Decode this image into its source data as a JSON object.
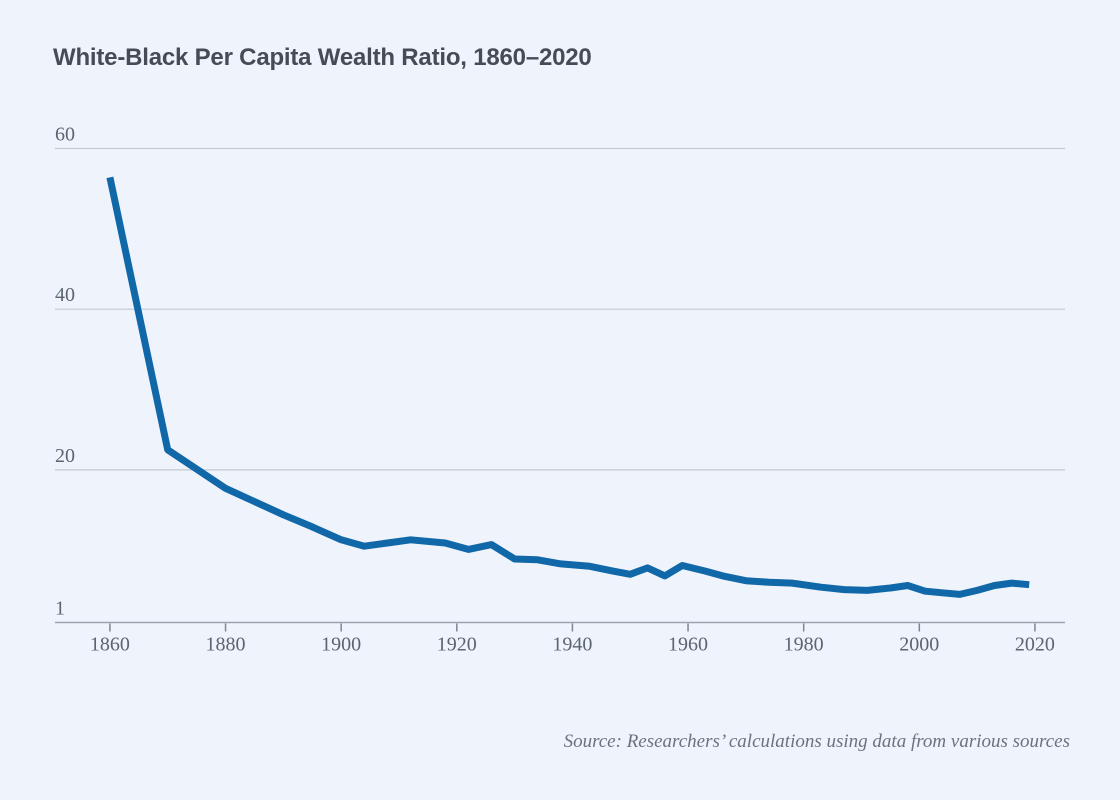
{
  "title": "White-Black Per Capita Wealth Ratio, 1860–2020",
  "source_note": "Source: Researchers’ calculations using data from various sources",
  "colors": {
    "background": "#eff3fb",
    "line": "#1168a8",
    "gridline": "#c4cad2",
    "axis": "#9ba3ad",
    "tick": "#7e868f",
    "tick_label": "#5b656f",
    "title": "#454c55",
    "source": "#6a737e"
  },
  "chart_data": {
    "type": "line",
    "title": "White-Black Per Capita Wealth Ratio, 1860–2020",
    "xlabel": "",
    "ylabel": "",
    "legend": "none",
    "grid": "horizontal",
    "xlim": [
      1850.5,
      2025.2
    ],
    "ylim": [
      1,
      60
    ],
    "x_ticks": [
      1860,
      1880,
      1900,
      1920,
      1940,
      1960,
      1980,
      2000,
      2020
    ],
    "y_gridlines": [
      60,
      40,
      20
    ],
    "y_baseline": 1,
    "y_tick_labels": [
      "60",
      "40",
      "20",
      "1"
    ],
    "series": [
      {
        "name": "White-Black per capita wealth ratio",
        "x": [
          1860,
          1870,
          1880,
          1890,
          1895,
          1900,
          1904,
          1908,
          1912,
          1918,
          1922,
          1926,
          1930,
          1934,
          1938,
          1943,
          1947,
          1950,
          1953,
          1956,
          1959,
          1963,
          1966,
          1970,
          1974,
          1978,
          1983,
          1987,
          1991,
          1995,
          1998,
          2001,
          2004,
          2007,
          2010,
          2013,
          2016,
          2019
        ],
        "y": [
          56.4,
          22.5,
          17.7,
          14.4,
          12.9,
          11.3,
          10.5,
          10.9,
          11.3,
          10.9,
          10.1,
          10.7,
          8.9,
          8.8,
          8.3,
          8.0,
          7.4,
          7.0,
          7.8,
          6.8,
          8.1,
          7.4,
          6.8,
          6.2,
          6.0,
          5.9,
          5.4,
          5.1,
          5.0,
          5.3,
          5.6,
          4.9,
          4.7,
          4.5,
          5.0,
          5.6,
          5.9,
          5.7
        ]
      }
    ]
  }
}
